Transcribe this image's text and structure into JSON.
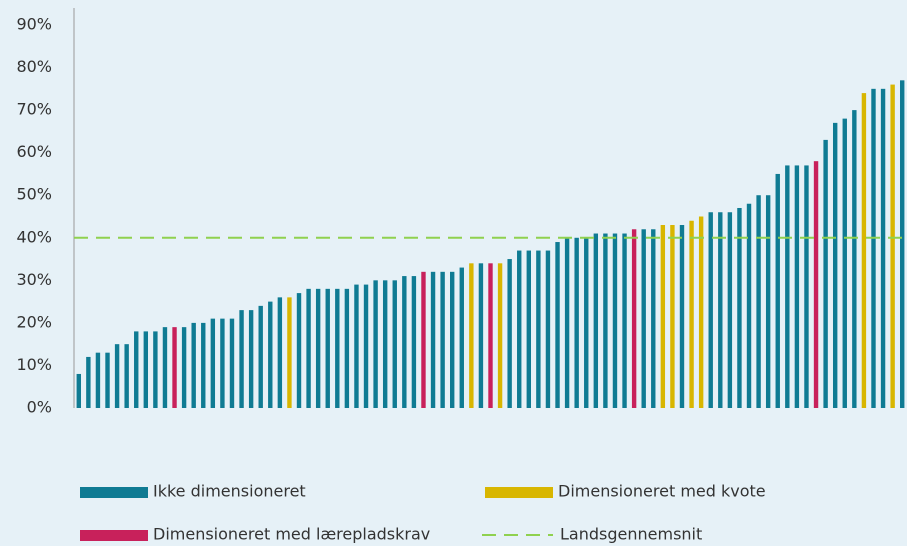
{
  "chart_data": {
    "type": "bar",
    "categories": [
      null,
      null,
      null,
      null,
      null,
      null,
      null,
      null,
      null,
      null,
      null,
      null,
      null,
      null,
      null,
      null,
      null,
      null,
      null,
      null,
      null,
      null,
      null,
      null,
      null,
      null,
      null,
      null,
      null,
      null,
      null,
      null,
      null,
      null,
      null,
      null,
      null,
      null,
      null,
      null,
      null,
      null,
      null,
      null,
      null,
      null,
      null,
      null,
      null,
      null,
      null,
      null,
      null,
      null,
      null,
      null,
      null,
      null,
      null,
      null,
      null,
      null,
      null,
      null,
      null,
      null,
      null,
      null,
      null,
      null,
      null,
      null,
      null,
      null,
      null,
      null,
      null,
      null,
      null,
      null,
      null,
      null,
      null,
      null,
      null,
      null,
      null
    ],
    "series": [
      {
        "name": "Ikke dimensioneret",
        "color": "#0f7b93",
        "values": [
          8,
          12,
          13,
          13,
          15,
          15,
          18,
          18,
          18,
          19,
          null,
          19,
          20,
          20,
          21,
          21,
          21,
          23,
          23,
          24,
          25,
          26,
          null,
          27,
          28,
          28,
          28,
          28,
          28,
          29,
          29,
          30,
          30,
          30,
          31,
          31,
          null,
          32,
          32,
          32,
          33,
          null,
          34,
          null,
          null,
          35,
          37,
          37,
          37,
          37,
          39,
          40,
          40,
          40,
          41,
          41,
          41,
          41,
          null,
          42,
          42,
          null,
          null,
          43,
          null,
          null,
          46,
          46,
          46,
          47,
          48,
          50,
          50,
          55,
          57,
          57,
          57,
          null,
          63,
          67,
          68,
          70,
          null,
          75,
          75,
          null,
          77
        ]
      },
      {
        "name": "Dimensioneret med kvote",
        "color": "#d8b600",
        "values": [
          null,
          null,
          null,
          null,
          null,
          null,
          null,
          null,
          null,
          null,
          null,
          null,
          null,
          null,
          null,
          null,
          null,
          null,
          null,
          null,
          null,
          null,
          26,
          null,
          null,
          null,
          null,
          null,
          null,
          null,
          null,
          null,
          null,
          null,
          null,
          null,
          null,
          null,
          null,
          null,
          null,
          34,
          null,
          null,
          34,
          null,
          null,
          null,
          null,
          null,
          null,
          null,
          null,
          null,
          null,
          null,
          null,
          null,
          null,
          null,
          null,
          43,
          43,
          null,
          44,
          45,
          null,
          null,
          null,
          null,
          null,
          null,
          null,
          null,
          null,
          null,
          null,
          null,
          null,
          null,
          null,
          null,
          74,
          null,
          null,
          76,
          null
        ]
      },
      {
        "name": "Dimensioneret med lærepladskrav",
        "color": "#c8215b",
        "values": [
          null,
          null,
          null,
          null,
          null,
          null,
          null,
          null,
          null,
          null,
          19,
          null,
          null,
          null,
          null,
          null,
          null,
          null,
          null,
          null,
          null,
          null,
          null,
          null,
          null,
          null,
          null,
          null,
          null,
          null,
          null,
          null,
          null,
          null,
          null,
          null,
          32,
          null,
          null,
          null,
          null,
          null,
          null,
          34,
          null,
          null,
          null,
          null,
          null,
          null,
          null,
          null,
          null,
          null,
          null,
          null,
          null,
          null,
          42,
          null,
          null,
          null,
          null,
          null,
          null,
          null,
          null,
          null,
          null,
          null,
          null,
          null,
          null,
          null,
          null,
          null,
          null,
          58,
          null,
          null,
          null,
          null,
          null,
          null,
          null,
          null,
          null
        ]
      }
    ],
    "average_line": {
      "name": "Landsgennemsnit",
      "value": 40,
      "color": "#8fd14f"
    },
    "ylim": [
      0,
      90
    ],
    "yticks": [
      {
        "value": 0,
        "label": "0%"
      },
      {
        "value": 10,
        "label": "10%"
      },
      {
        "value": 20,
        "label": "20%"
      },
      {
        "value": 30,
        "label": "30%"
      },
      {
        "value": 40,
        "label": "40%"
      },
      {
        "value": 50,
        "label": "50%"
      },
      {
        "value": 60,
        "label": "60%"
      },
      {
        "value": 70,
        "label": "70%"
      },
      {
        "value": 80,
        "label": "80%"
      },
      {
        "value": 90,
        "label": "90%"
      }
    ]
  }
}
